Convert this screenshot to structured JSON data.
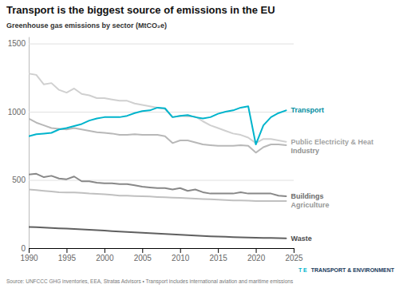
{
  "chart_data": {
    "type": "line",
    "title": "Transport is the biggest source of emissions in the EU",
    "subtitle": "Greenhouse gas emissions by sector (MtCO₂e)",
    "annotations": [
      {
        "text": "Source: UNFCCC GHG inventories, EEA, Stratas Advisors • Transport includes international aviation and maritime\nemissions"
      },
      {
        "text": "T\nE",
        "color": "#00b4cc"
      },
      {
        "text": "TRANSPORT &\nENVIRONMENT",
        "color": "#1a3a5c"
      }
    ],
    "x": [
      1990,
      1991,
      1992,
      1993,
      1994,
      1995,
      1996,
      1997,
      1998,
      1999,
      2000,
      2001,
      2002,
      2003,
      2004,
      2005,
      2006,
      2007,
      2008,
      2009,
      2010,
      2011,
      2012,
      2013,
      2014,
      2015,
      2016,
      2017,
      2018,
      2019,
      2020,
      2021,
      2022,
      2023,
      2024
    ],
    "series": [
      {
        "name": "Public Electricity & Heat",
        "color": "#d0d0d0",
        "values": [
          1280,
          1270,
          1200,
          1210,
          1160,
          1140,
          1170,
          1130,
          1120,
          1100,
          1100,
          1090,
          1080,
          1080,
          1060,
          1050,
          1040,
          1030,
          1020,
          960,
          970,
          965,
          965,
          930,
          900,
          880,
          860,
          840,
          830,
          810,
          770,
          800,
          800,
          790,
          780
        ]
      },
      {
        "name": "Industry",
        "color": "#b8b8b8",
        "values": [
          950,
          920,
          900,
          880,
          875,
          870,
          880,
          870,
          860,
          850,
          845,
          840,
          830,
          830,
          835,
          830,
          830,
          830,
          820,
          770,
          790,
          790,
          775,
          760,
          755,
          750,
          750,
          750,
          755,
          750,
          700,
          740,
          760,
          760,
          755
        ]
      },
      {
        "name": "Transport",
        "color": "#00b4cc",
        "values": [
          820,
          835,
          840,
          845,
          870,
          880,
          895,
          910,
          935,
          950,
          960,
          960,
          960,
          970,
          990,
          1005,
          1010,
          1030,
          1025,
          960,
          970,
          975,
          960,
          950,
          960,
          985,
          1000,
          1010,
          1030,
          1040,
          760,
          900,
          960,
          990,
          1010
        ]
      },
      {
        "name": "Buildings",
        "color": "#888888",
        "values": [
          540,
          545,
          520,
          530,
          510,
          505,
          525,
          490,
          490,
          480,
          475,
          475,
          470,
          470,
          460,
          450,
          445,
          440,
          440,
          430,
          440,
          420,
          430,
          410,
          400,
          400,
          400,
          400,
          410,
          400,
          400,
          400,
          400,
          385,
          380
        ]
      },
      {
        "name": "Agriculture",
        "color": "#c0c0c0",
        "values": [
          430,
          425,
          420,
          415,
          410,
          408,
          408,
          405,
          400,
          398,
          395,
          390,
          385,
          385,
          382,
          380,
          378,
          375,
          373,
          370,
          368,
          365,
          362,
          360,
          358,
          355,
          352,
          350,
          350,
          348,
          345,
          345,
          345,
          345,
          345
        ]
      },
      {
        "name": "Waste",
        "color": "#606060",
        "values": [
          155,
          153,
          151,
          148,
          145,
          143,
          140,
          137,
          134,
          131,
          128,
          125,
          122,
          119,
          116,
          113,
          110,
          107,
          104,
          101,
          98,
          95,
          92,
          89,
          87,
          85,
          83,
          81,
          79,
          78,
          76,
          75,
          74,
          73,
          72
        ]
      }
    ],
    "xlim": [
      1990,
      2025
    ],
    "ylim": [
      0,
      1550
    ],
    "xticks": [
      1990,
      1995,
      2000,
      2005,
      2010,
      2015,
      2020,
      2025
    ],
    "yticks": [
      0,
      500,
      1000,
      1500
    ],
    "grid": true
  }
}
